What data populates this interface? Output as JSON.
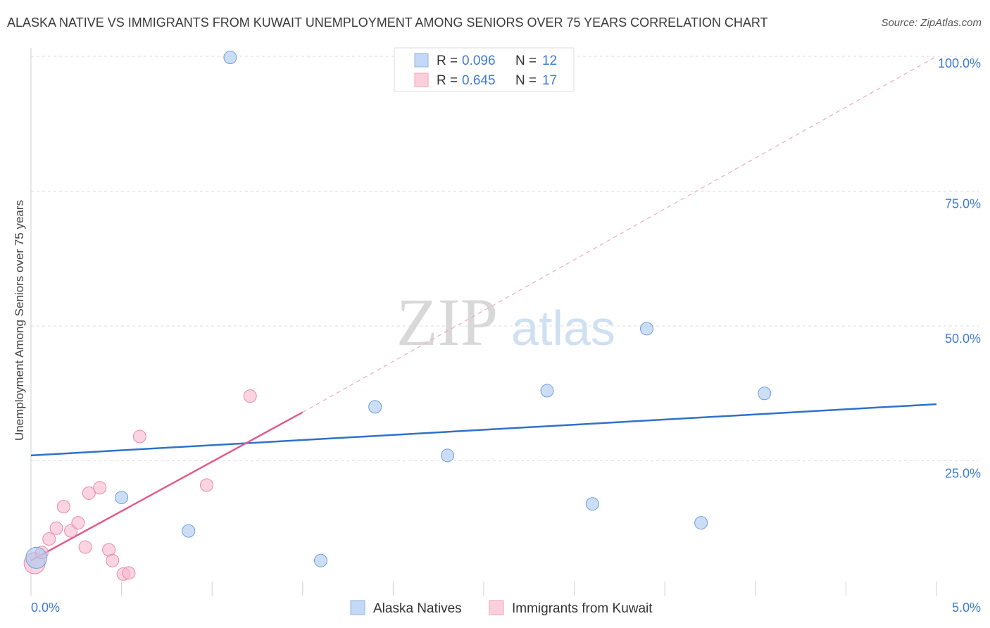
{
  "header": {
    "title": "ALASKA NATIVE VS IMMIGRANTS FROM KUWAIT UNEMPLOYMENT AMONG SENIORS OVER 75 YEARS CORRELATION CHART",
    "source": "Source: ZipAtlas.com"
  },
  "watermark": {
    "zip": "ZIP",
    "atlas": "atlas"
  },
  "legend_box": {
    "rows": [
      {
        "r_label": "R = ",
        "r_value": "0.096",
        "n_label": "N = ",
        "n_value": "12",
        "color": "#a8c8f0"
      },
      {
        "r_label": "R = ",
        "r_value": "0.645",
        "n_label": "N = ",
        "n_value": "17",
        "color": "#f7b8cc"
      }
    ]
  },
  "bottom_legend": {
    "items": [
      {
        "label": "Alaska Natives",
        "color": "#a8c8f0"
      },
      {
        "label": "Immigrants from Kuwait",
        "color": "#f7b8cc"
      }
    ]
  },
  "chart_data": {
    "type": "scatter",
    "title": "ALASKA NATIVE VS IMMIGRANTS FROM KUWAIT UNEMPLOYMENT AMONG SENIORS OVER 75 YEARS CORRELATION CHART",
    "xlabel": "",
    "ylabel": "Unemployment Among Seniors over 75 years",
    "xlim": [
      0,
      5
    ],
    "ylim": [
      0,
      100
    ],
    "x_tick_labels": [
      {
        "value": 0,
        "label": "0.0%"
      },
      {
        "value": 5,
        "label": "5.0%"
      }
    ],
    "y_tick_labels": [
      {
        "value": 25,
        "label": "25.0%"
      },
      {
        "value": 50,
        "label": "50.0%"
      },
      {
        "value": 75,
        "label": "75.0%"
      },
      {
        "value": 100,
        "label": "100.0%"
      }
    ],
    "grid": true,
    "series": [
      {
        "name": "Alaska Natives",
        "color": "#a8c8f0",
        "stroke": "#6f9fd8",
        "line_color": "#2f72c8",
        "r": 0.096,
        "n": 12,
        "points": [
          {
            "x": 0.03,
            "y": 7.0
          },
          {
            "x": 0.5,
            "y": 18.2
          },
          {
            "x": 0.87,
            "y": 12.0
          },
          {
            "x": 1.1,
            "y": 99.8
          },
          {
            "x": 1.6,
            "y": 6.5
          },
          {
            "x": 1.9,
            "y": 35.0
          },
          {
            "x": 2.3,
            "y": 26.0
          },
          {
            "x": 2.85,
            "y": 38.0
          },
          {
            "x": 3.1,
            "y": 17.0
          },
          {
            "x": 3.4,
            "y": 49.5
          },
          {
            "x": 3.7,
            "y": 13.5
          },
          {
            "x": 4.05,
            "y": 37.5
          }
        ],
        "trend": {
          "x0": 0,
          "y0": 26.0,
          "x1": 5,
          "y1": 35.5
        }
      },
      {
        "name": "Immigrants from Kuwait",
        "color": "#f7b8cc",
        "stroke": "#e88aa8",
        "line_color": "#e05c8a",
        "r": 0.645,
        "n": 17,
        "points": [
          {
            "x": 0.02,
            "y": 6.0
          },
          {
            "x": 0.06,
            "y": 8.0
          },
          {
            "x": 0.1,
            "y": 10.5
          },
          {
            "x": 0.14,
            "y": 12.5
          },
          {
            "x": 0.18,
            "y": 16.5
          },
          {
            "x": 0.22,
            "y": 12.0
          },
          {
            "x": 0.26,
            "y": 13.5
          },
          {
            "x": 0.3,
            "y": 9.0
          },
          {
            "x": 0.32,
            "y": 19.0
          },
          {
            "x": 0.38,
            "y": 20.0
          },
          {
            "x": 0.43,
            "y": 8.5
          },
          {
            "x": 0.45,
            "y": 6.5
          },
          {
            "x": 0.51,
            "y": 4.0
          },
          {
            "x": 0.54,
            "y": 4.2
          },
          {
            "x": 0.6,
            "y": 29.5
          },
          {
            "x": 0.97,
            "y": 20.5
          },
          {
            "x": 1.21,
            "y": 37.0
          }
        ],
        "trend": {
          "x0": 0,
          "y0": 6.5,
          "x1": 1.5,
          "y1": 34.0
        },
        "trend_extension": {
          "x0": 1.5,
          "y0": 34.0,
          "x1": 5,
          "y1": 100.0
        }
      }
    ]
  }
}
